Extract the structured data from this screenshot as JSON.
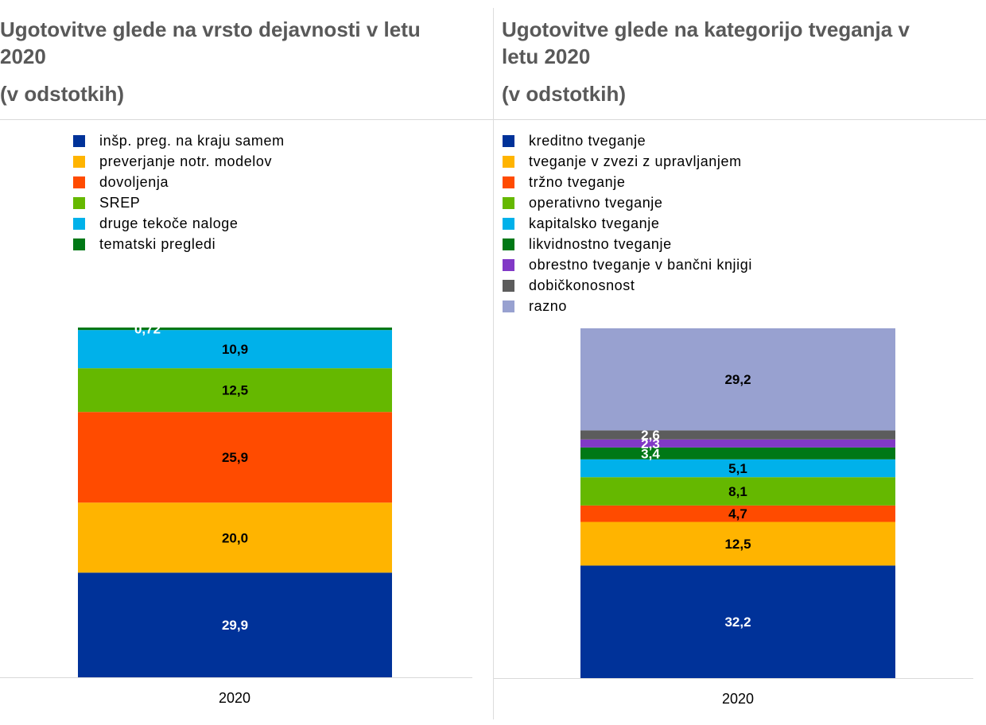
{
  "chart_data": [
    {
      "type": "bar",
      "stacked": true,
      "title": "Ugotovitve glede na vrsto dejavnosti v letu 2020",
      "subtitle": "(v odstotkih)",
      "categories": [
        "2020"
      ],
      "ylim": [
        0,
        100
      ],
      "legend_position": "top",
      "series": [
        {
          "name": "inšp. preg. na kraju samem",
          "values": [
            29.9
          ],
          "label": "29,9",
          "color": "#003299",
          "label_color": "#ffffff"
        },
        {
          "name": "preverjanje notr. modelov",
          "values": [
            20.0
          ],
          "label": "20,0",
          "color": "#ffb400",
          "label_color": "#000000"
        },
        {
          "name": "dovoljenja",
          "values": [
            25.9
          ],
          "label": "25,9",
          "color": "#ff4b00",
          "label_color": "#000000"
        },
        {
          "name": "SREP",
          "values": [
            12.5
          ],
          "label": "12,5",
          "color": "#65b800",
          "label_color": "#000000"
        },
        {
          "name": "druge tekoče naloge",
          "values": [
            10.9
          ],
          "label": "10,9",
          "color": "#00b1ea",
          "label_color": "#000000"
        },
        {
          "name": "tematski pregledi",
          "values": [
            0.72
          ],
          "label": "0,72",
          "color": "#007816",
          "label_color": "#ffffff"
        }
      ]
    },
    {
      "type": "bar",
      "stacked": true,
      "title": "Ugotovitve glede na kategorijo tveganja v letu 2020",
      "subtitle": "(v odstotkih)",
      "categories": [
        "2020"
      ],
      "ylim": [
        0,
        100
      ],
      "legend_position": "top",
      "series": [
        {
          "name": "kreditno tveganje",
          "values": [
            32.2
          ],
          "label": "32,2",
          "color": "#003299",
          "label_color": "#ffffff"
        },
        {
          "name": "tveganje v zvezi z upravljanjem",
          "values": [
            12.5
          ],
          "label": "12,5",
          "color": "#ffb400",
          "label_color": "#000000"
        },
        {
          "name": "tržno tveganje",
          "values": [
            4.7
          ],
          "label": "4,7",
          "color": "#ff4b00",
          "label_color": "#000000"
        },
        {
          "name": "operativno tveganje",
          "values": [
            8.1
          ],
          "label": "8,1",
          "color": "#65b800",
          "label_color": "#000000"
        },
        {
          "name": "kapitalsko tveganje",
          "values": [
            5.1
          ],
          "label": "5,1",
          "color": "#00b1ea",
          "label_color": "#000000"
        },
        {
          "name": "likvidnostno tveganje",
          "values": [
            3.4
          ],
          "label": "3,4",
          "color": "#007816",
          "label_color": "#ffffff"
        },
        {
          "name": "obrestno tveganje v bančni knjigi",
          "values": [
            2.3
          ],
          "label": "2,3",
          "color": "#8139c6",
          "label_color": "#ffffff"
        },
        {
          "name": "dobičkonosnost",
          "values": [
            2.6
          ],
          "label": "2,6",
          "color": "#5c5c5c",
          "label_color": "#ffffff"
        },
        {
          "name": "razno",
          "values": [
            29.2
          ],
          "label": "29,2",
          "color": "#98a1d0",
          "label_color": "#000000"
        }
      ]
    }
  ]
}
